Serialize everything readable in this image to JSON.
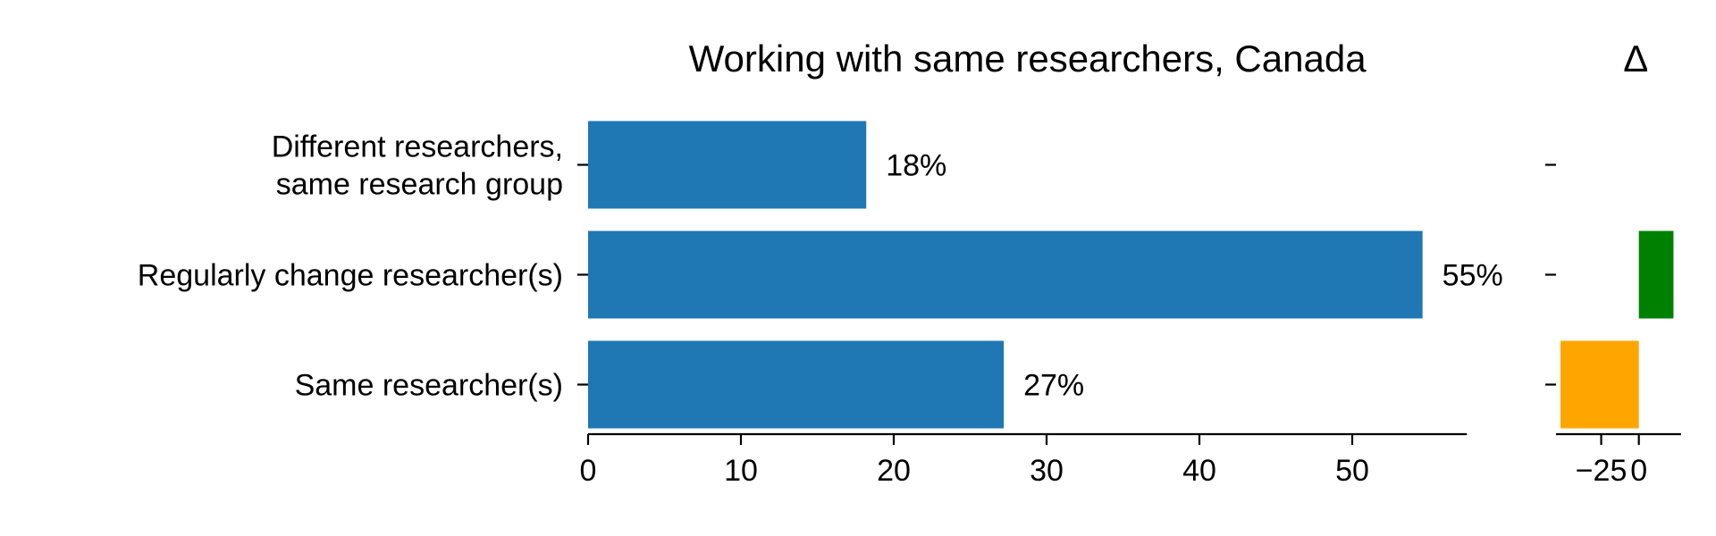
{
  "chart_data": [
    {
      "type": "bar",
      "orientation": "horizontal",
      "title": "Working with same researchers, Canada",
      "categories": [
        "Different researchers,\nsame research group",
        "Regularly change researcher(s)",
        "Same researcher(s)"
      ],
      "values": [
        18.2,
        54.6,
        27.2
      ],
      "value_labels": [
        "18%",
        "55%",
        "27%"
      ],
      "xlim": [
        0,
        57.5
      ],
      "xticks": [
        0,
        10,
        20,
        30,
        40,
        50
      ],
      "xtick_labels": [
        "0",
        "10",
        "20",
        "30",
        "40",
        "50"
      ],
      "colors": {
        "bar": "#1f77b4"
      }
    },
    {
      "type": "bar",
      "orientation": "horizontal",
      "title": "Δ",
      "categories": [
        "Different researchers,\nsame research group",
        "Regularly change researcher(s)",
        "Same researcher(s)"
      ],
      "values": [
        0,
        23,
        -52
      ],
      "xlim": [
        -55,
        28
      ],
      "xticks": [
        -25,
        0
      ],
      "xtick_labels": [
        "−25",
        "0"
      ],
      "colors": {
        "positive": "#008000",
        "negative": "#ffa500"
      }
    }
  ]
}
